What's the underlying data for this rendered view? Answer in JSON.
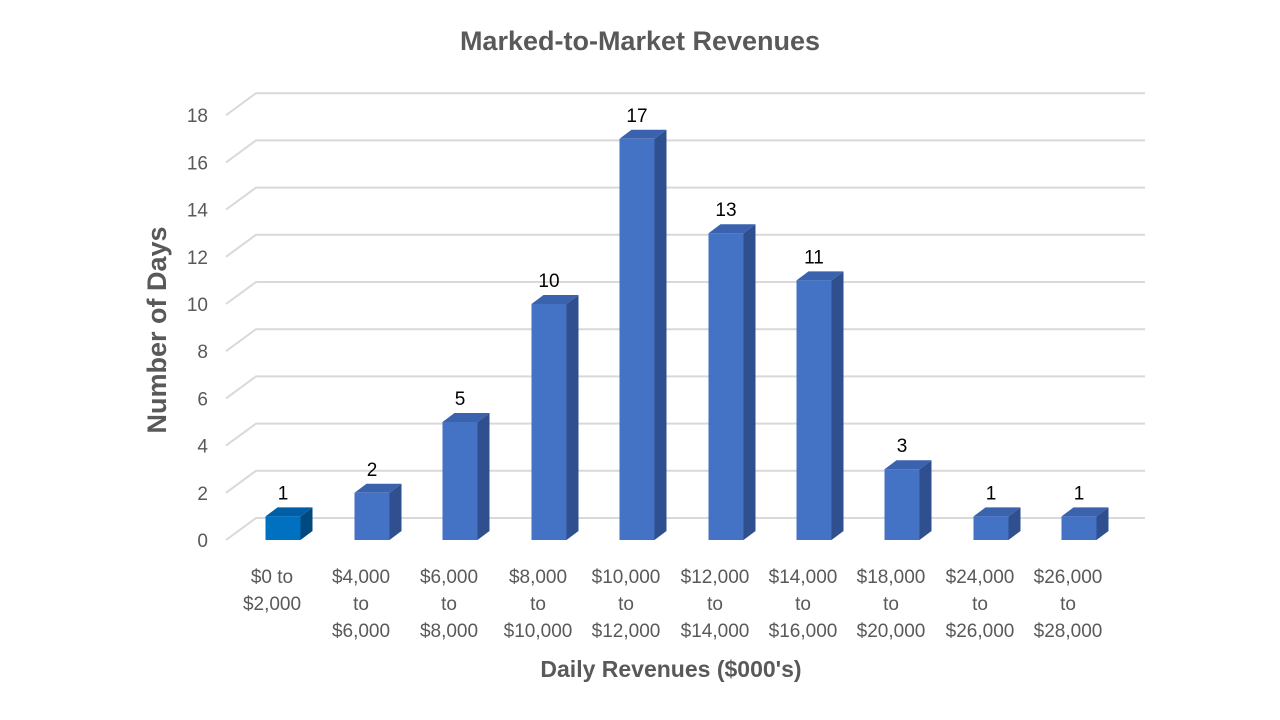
{
  "chart_data": {
    "type": "bar",
    "style": "3d-column",
    "title": "Marked-to-Market Revenues",
    "xlabel": "Daily Revenues ($000's)",
    "ylabel": "Number of Days",
    "ylim": [
      0,
      18
    ],
    "yticks": [
      0,
      2,
      4,
      6,
      8,
      10,
      12,
      14,
      16,
      18
    ],
    "grid": true,
    "legend": "none",
    "categories": [
      [
        "$0 to",
        "$2,000"
      ],
      [
        "$4,000",
        "to",
        "$6,000"
      ],
      [
        "$6,000",
        "to",
        "$8,000"
      ],
      [
        "$8,000",
        "to",
        "$10,000"
      ],
      [
        "$10,000",
        "to",
        "$12,000"
      ],
      [
        "$12,000",
        "to",
        "$14,000"
      ],
      [
        "$14,000",
        "to",
        "$16,000"
      ],
      [
        "$18,000",
        "to",
        "$20,000"
      ],
      [
        "$24,000",
        "to",
        "$26,000"
      ],
      [
        "$26,000",
        "to",
        "$28,000"
      ]
    ],
    "values": [
      1,
      2,
      5,
      10,
      17,
      13,
      11,
      3,
      1,
      1
    ],
    "data_labels": [
      "1",
      "2",
      "5",
      "10",
      "17",
      "13",
      "11",
      "3",
      "1",
      "1"
    ],
    "colors": {
      "bar_front": "#4472c4",
      "bar_side": "#2f4f8f",
      "bar_top": "#3a62ad",
      "first_bar_front": "#0070c0",
      "first_bar_side": "#004a80",
      "first_bar_top": "#005ea6",
      "grid": "#d9d9d9",
      "text": "#595959"
    }
  }
}
